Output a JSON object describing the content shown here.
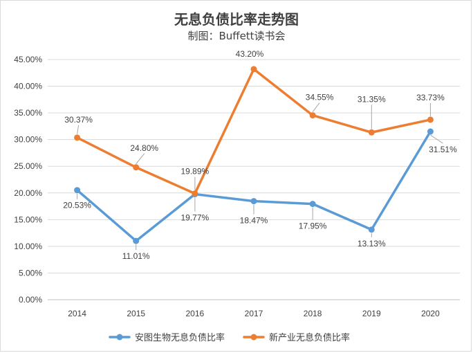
{
  "chart_data": {
    "type": "line",
    "title": "无息负债比率走势图",
    "subtitle": "制图：Buffett读书会",
    "xlabel": "",
    "ylabel": "",
    "categories": [
      "2014",
      "2015",
      "2016",
      "2017",
      "2018",
      "2019",
      "2020"
    ],
    "y_ticks": [
      "0.00%",
      "5.00%",
      "10.00%",
      "15.00%",
      "20.00%",
      "25.00%",
      "30.00%",
      "35.00%",
      "40.00%",
      "45.00%"
    ],
    "ylim": [
      0,
      45
    ],
    "grid": true,
    "legend_position": "bottom",
    "series": [
      {
        "name": "安图生物无息负债比率",
        "color": "#5b9bd5",
        "values": [
          20.53,
          11.01,
          19.77,
          18.47,
          17.95,
          13.13,
          31.51
        ],
        "labels": [
          "20.53%",
          "11.01%",
          "19.77%",
          "18.47%",
          "17.95%",
          "13.13%",
          "31.51%"
        ]
      },
      {
        "name": "新产业无息负债比率",
        "color": "#ed7d31",
        "values": [
          30.37,
          24.8,
          19.89,
          43.2,
          34.55,
          31.35,
          33.73
        ],
        "labels": [
          "30.37%",
          "24.80%",
          "19.89%",
          "43.20%",
          "34.55%",
          "31.35%",
          "33.73%"
        ]
      }
    ]
  }
}
